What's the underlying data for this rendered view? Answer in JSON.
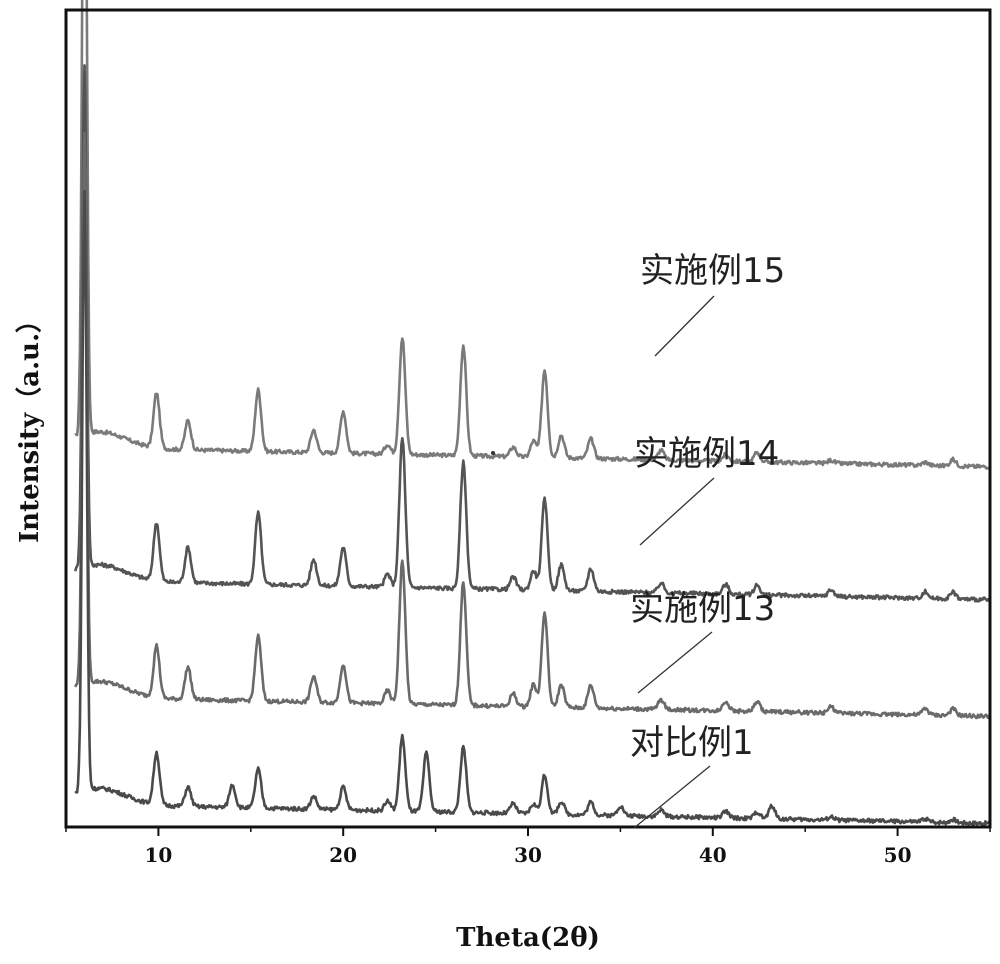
{
  "chart_data": {
    "type": "line",
    "title": "",
    "xlabel": "Theta(2θ)",
    "ylabel": "Intensity（a.u.）",
    "xlim": [
      5,
      55
    ],
    "x_ticks": [
      10,
      20,
      30,
      40,
      50
    ],
    "y_ticks": [],
    "grid": false,
    "legend": "none",
    "series": [
      {
        "name": "实施例15",
        "color": "#7a7a7a",
        "baseline": 1.05,
        "peaks": [
          [
            6.0,
            2.3
          ],
          [
            9.9,
            0.17
          ],
          [
            11.6,
            0.09
          ],
          [
            15.4,
            0.19
          ],
          [
            18.4,
            0.07
          ],
          [
            20.0,
            0.13
          ],
          [
            22.4,
            0.03
          ],
          [
            23.2,
            0.36
          ],
          [
            26.5,
            0.34
          ],
          [
            29.2,
            0.03
          ],
          [
            30.3,
            0.05
          ],
          [
            30.9,
            0.27
          ],
          [
            31.8,
            0.07
          ],
          [
            33.4,
            0.06
          ],
          [
            37.2,
            0.03
          ],
          [
            40.7,
            0.02
          ],
          [
            42.4,
            0.03
          ],
          [
            46.4,
            0.01
          ],
          [
            51.5,
            0.01
          ],
          [
            53.0,
            0.02
          ]
        ]
      },
      {
        "name": "实施例14",
        "color": "#545454",
        "baseline": 0.64,
        "peaks": [
          [
            6.0,
            1.55
          ],
          [
            9.9,
            0.18
          ],
          [
            11.6,
            0.11
          ],
          [
            15.4,
            0.22
          ],
          [
            18.4,
            0.08
          ],
          [
            20.0,
            0.12
          ],
          [
            22.4,
            0.04
          ],
          [
            23.2,
            0.46
          ],
          [
            26.5,
            0.39
          ],
          [
            29.2,
            0.04
          ],
          [
            30.3,
            0.06
          ],
          [
            30.9,
            0.28
          ],
          [
            31.8,
            0.08
          ],
          [
            33.4,
            0.07
          ],
          [
            37.2,
            0.03
          ],
          [
            40.7,
            0.03
          ],
          [
            42.4,
            0.03
          ],
          [
            46.4,
            0.02
          ],
          [
            51.5,
            0.02
          ],
          [
            53.0,
            0.02
          ]
        ]
      },
      {
        "name": "实施例13",
        "color": "#6a6a6a",
        "baseline": 0.28,
        "peaks": [
          [
            6.0,
            1.7
          ],
          [
            9.9,
            0.16
          ],
          [
            11.6,
            0.1
          ],
          [
            15.4,
            0.2
          ],
          [
            18.4,
            0.08
          ],
          [
            20.0,
            0.12
          ],
          [
            22.4,
            0.04
          ],
          [
            23.2,
            0.44
          ],
          [
            26.5,
            0.38
          ],
          [
            29.2,
            0.04
          ],
          [
            30.3,
            0.07
          ],
          [
            30.9,
            0.29
          ],
          [
            31.8,
            0.07
          ],
          [
            33.4,
            0.07
          ],
          [
            37.2,
            0.03
          ],
          [
            40.7,
            0.03
          ],
          [
            42.4,
            0.03
          ],
          [
            46.4,
            0.02
          ],
          [
            51.5,
            0.02
          ],
          [
            53.0,
            0.02
          ]
        ]
      },
      {
        "name": "对比例1",
        "color": "#4a4a4a",
        "baseline": -0.05,
        "peaks": [
          [
            6.0,
            1.85
          ],
          [
            9.9,
            0.16
          ],
          [
            11.6,
            0.06
          ],
          [
            14.0,
            0.07
          ],
          [
            15.4,
            0.12
          ],
          [
            18.4,
            0.04
          ],
          [
            20.0,
            0.07
          ],
          [
            22.4,
            0.03
          ],
          [
            23.2,
            0.23
          ],
          [
            24.5,
            0.18
          ],
          [
            26.5,
            0.2
          ],
          [
            29.2,
            0.03
          ],
          [
            30.3,
            0.03
          ],
          [
            30.9,
            0.12
          ],
          [
            31.8,
            0.04
          ],
          [
            33.4,
            0.04
          ],
          [
            35.0,
            0.03
          ],
          [
            37.2,
            0.02
          ],
          [
            40.7,
            0.02
          ],
          [
            42.4,
            0.02
          ],
          [
            43.2,
            0.04
          ],
          [
            46.4,
            0.01
          ],
          [
            51.5,
            0.01
          ],
          [
            53.0,
            0.01
          ]
        ]
      }
    ]
  }
}
